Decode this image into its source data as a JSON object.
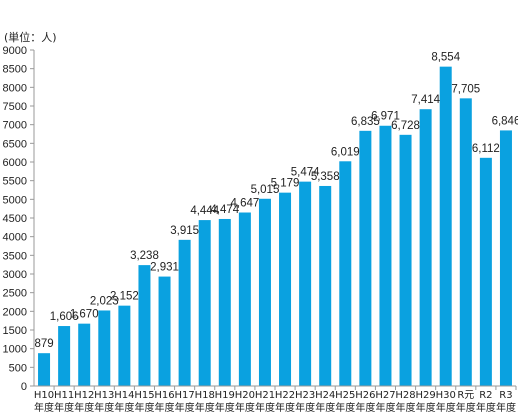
{
  "chart_data": {
    "type": "bar",
    "unit_label": "(単位：人)",
    "categories": [
      [
        "H10",
        "年度"
      ],
      [
        "H11",
        "年度"
      ],
      [
        "H12",
        "年度"
      ],
      [
        "H13",
        "年度"
      ],
      [
        "H14",
        "年度"
      ],
      [
        "H15",
        "年度"
      ],
      [
        "H16",
        "年度"
      ],
      [
        "H17",
        "年度"
      ],
      [
        "H18",
        "年度"
      ],
      [
        "H19",
        "年度"
      ],
      [
        "H20",
        "年度"
      ],
      [
        "H21",
        "年度"
      ],
      [
        "H22",
        "年度"
      ],
      [
        "H23",
        "年度"
      ],
      [
        "H24",
        "年度"
      ],
      [
        "H25",
        "年度"
      ],
      [
        "H26",
        "年度"
      ],
      [
        "H27",
        "年度"
      ],
      [
        "H28",
        "年度"
      ],
      [
        "H29",
        "年度"
      ],
      [
        "H30",
        "年度"
      ],
      [
        "R元",
        "年度"
      ],
      [
        "R2",
        "年度"
      ],
      [
        "R3",
        "年度"
      ]
    ],
    "values": [
      879,
      1606,
      1670,
      2023,
      2152,
      3238,
      2931,
      3915,
      4444,
      4474,
      4647,
      5015,
      5179,
      5474,
      5358,
      6019,
      6835,
      6971,
      6728,
      7414,
      8554,
      7705,
      6112,
      6846
    ],
    "data_labels": [
      "879",
      "1,606",
      "1,670",
      "2,023",
      "2,152",
      "3,238",
      "2,931",
      "3,915",
      "4,444",
      "4,474",
      "4,647",
      "5,015",
      "5,179",
      "5,474",
      "5,358",
      "6,019",
      "6,835",
      "6,971",
      "6,728",
      "7,414",
      "8,554",
      "7,705",
      "6,112",
      "6,846"
    ],
    "ylim": [
      0,
      9000
    ],
    "yticks": [
      "0",
      "500",
      "1000",
      "1500",
      "2000",
      "2500",
      "3000",
      "3500",
      "4000",
      "4500",
      "5000",
      "5500",
      "6000",
      "6500",
      "7000",
      "7500",
      "8000",
      "8500",
      "9000"
    ],
    "grid": false,
    "bar_color": "#0aa1e0",
    "axis_color": "#999999"
  }
}
